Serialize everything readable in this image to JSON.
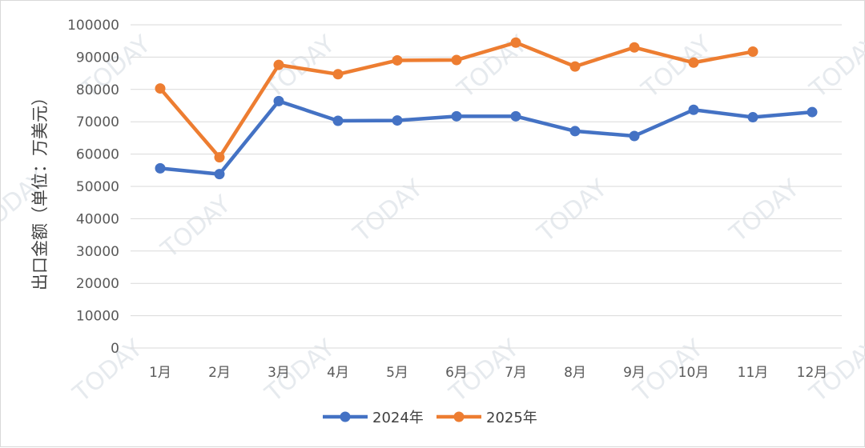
{
  "chart_data": {
    "type": "line",
    "title": "",
    "xlabel": "",
    "ylabel": "出口金额（单位：万美元）",
    "categories": [
      "1月",
      "2月",
      "3月",
      "4月",
      "5月",
      "6月",
      "7月",
      "8月",
      "9月",
      "10月",
      "11月",
      "12月"
    ],
    "ylim": [
      0,
      100000
    ],
    "yticks": [
      0,
      10000,
      20000,
      30000,
      40000,
      50000,
      60000,
      70000,
      80000,
      90000,
      100000
    ],
    "grid": true,
    "legend_position": "bottom",
    "series": [
      {
        "name": "2024年",
        "color": "#4472c4",
        "values": [
          55600,
          53800,
          76400,
          70300,
          70400,
          71700,
          71700,
          67100,
          65600,
          73700,
          71400,
          73000
        ]
      },
      {
        "name": "2025年",
        "color": "#ed7d31",
        "values": [
          80300,
          59000,
          87600,
          84700,
          89000,
          89100,
          94500,
          87100,
          93000,
          88300,
          91700,
          null
        ]
      }
    ]
  },
  "watermark": {
    "text": "TODAY",
    "color": "#e6eaee"
  }
}
